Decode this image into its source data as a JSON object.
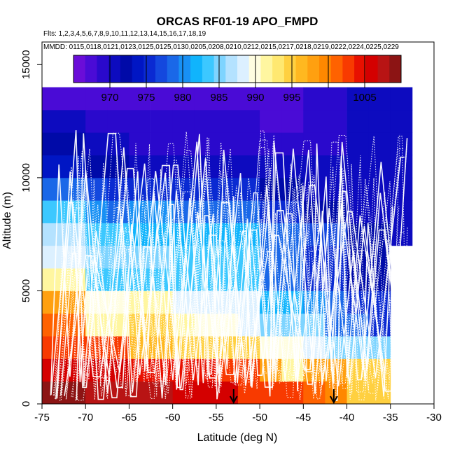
{
  "chart_data": {
    "type": "heatmap",
    "title": "ORCAS RF01-19 APO_FMPD",
    "flights_text": "Flts: 1,2,3,4,5,6,7,8,9,10,11,12,13,14,15,16,17,18,19",
    "dates_text": "MMDD: 0115,0118,0121,0123,0125,0125,0130,0205,0208,0210,0212,0215,0217,0218,0219,0222,0224,0225,0229",
    "xlabel": "Latitude (deg N)",
    "ylabel": "Altitude (m)",
    "xlim": [
      -75,
      -30
    ],
    "ylim": [
      0,
      16000
    ],
    "x_ticks": [
      -75,
      -70,
      -65,
      -60,
      -55,
      -50,
      -45,
      -40,
      -35,
      -30
    ],
    "x_tick_labels": [
      "-75",
      "-70",
      "-65",
      "-60",
      "-55",
      "-50",
      "-45",
      "-40",
      "-35",
      "-30"
    ],
    "y_ticks": [
      0,
      5000,
      10000,
      15000
    ],
    "y_tick_labels": [
      "0",
      "5000",
      "10000",
      "15000"
    ],
    "colorbar": {
      "range": [
        965,
        1010
      ],
      "ticks": [
        970,
        975,
        980,
        985,
        990,
        995,
        1005
      ],
      "tick_labels": [
        "970",
        "975",
        "980",
        "985",
        "990",
        "995",
        "1005"
      ],
      "colors": [
        "#6a0dd8",
        "#4a0bd6",
        "#2a09cc",
        "#0d0bbf",
        "#000aa8",
        "#0016c4",
        "#0a2ad2",
        "#1448de",
        "#1a68e8",
        "#1890f4",
        "#10b4fc",
        "#3cc8ff",
        "#7ed4ff",
        "#b4e2ff",
        "#dcf0ff",
        "#fffde0",
        "#fff6a0",
        "#ffe870",
        "#ffd040",
        "#ffb820",
        "#ffa010",
        "#ff8800",
        "#ff6200",
        "#f83a00",
        "#e81000",
        "#d40000",
        "#b81414",
        "#8c1414"
      ]
    },
    "grid": {
      "lat_bin_width": 2.5,
      "alt_bin_height": 1000,
      "bins": [
        {
          "lat": -75.0,
          "values": [
            1010,
            1006,
            1003,
            1001,
            998,
            991,
            989,
            987,
            983,
            979,
            974,
            972,
            970,
            967
          ]
        },
        {
          "lat": -72.5,
          "values": [
            1010,
            1006,
            1003,
            1001,
            998,
            991,
            989,
            987,
            983,
            979,
            974,
            972,
            970,
            967
          ]
        },
        {
          "lat": -70.0,
          "values": [
            1008,
            1006,
            1003,
            992,
            990,
            983,
            985,
            983,
            980,
            977,
            972,
            970,
            969,
            967
          ]
        },
        {
          "lat": -67.5,
          "values": [
            1007,
            1006,
            1002,
            992,
            990,
            983,
            985,
            983,
            979,
            976,
            972,
            970,
            969,
            967
          ]
        },
        {
          "lat": -65.0,
          "values": [
            1007,
            1005,
            996,
            994,
            992,
            983,
            985,
            982,
            980,
            975,
            971,
            969,
            969,
            967
          ]
        },
        {
          "lat": -62.5,
          "values": [
            1007,
            1005,
            996,
            994,
            992,
            983,
            985,
            982,
            980,
            975,
            971,
            969,
            969,
            967
          ]
        },
        {
          "lat": -60.0,
          "values": [
            1006,
            1004,
            994,
            991,
            989,
            983,
            983,
            982,
            979,
            975,
            971,
            969,
            969,
            967
          ]
        },
        {
          "lat": -57.5,
          "values": [
            1006,
            1004,
            994,
            990,
            988,
            983,
            983,
            982,
            979,
            975,
            971,
            969,
            969,
            967
          ]
        },
        {
          "lat": -55.0,
          "values": [
            1006,
            1003,
            994,
            990,
            989,
            983,
            983,
            982,
            979,
            975,
            971,
            969,
            969,
            967
          ]
        },
        {
          "lat": -52.5,
          "values": [
            1003,
            1003,
            995,
            989,
            988,
            983,
            983,
            982,
            979,
            975,
            971,
            969,
            969,
            968
          ]
        },
        {
          "lat": -50.0,
          "values": [
            1002,
            998,
            990,
            985,
            982,
            979,
            978,
            979,
            976,
            973,
            970,
            969,
            968,
            968
          ]
        },
        {
          "lat": -47.5,
          "values": [
            1002,
            992,
            990,
            985,
            982,
            979,
            978,
            979,
            976,
            973,
            970,
            969,
            968,
            968
          ]
        },
        {
          "lat": -45.0,
          "values": [
            1001,
            998,
            988,
            985,
            981,
            975,
            976,
            977,
            973,
            970,
            970,
            969,
            969,
            969
          ]
        },
        {
          "lat": -42.5,
          "values": [
            999,
            998,
            985,
            979,
            978,
            975,
            976,
            977,
            973,
            970,
            970,
            969,
            969,
            969
          ]
        },
        {
          "lat": -40.0,
          "values": [
            995,
            994,
            985,
            979,
            976,
            973,
            972,
            972,
            971,
            971,
            971,
            971,
            971,
            971
          ]
        },
        {
          "lat": -37.5,
          "values": [
            995,
            994,
            985,
            976,
            976,
            973,
            972,
            972,
            971,
            971,
            970,
            970,
            970,
            970
          ]
        },
        {
          "lat": -35.0,
          "values": [
            null,
            null,
            null,
            null,
            null,
            null,
            null,
            971,
            971,
            971,
            970,
            970,
            970,
            970
          ]
        }
      ]
    },
    "markers": [
      {
        "lat": -53.0,
        "label": "arrow"
      },
      {
        "lat": -41.5,
        "label": "arrow"
      }
    ],
    "flight_tracks": {
      "color": "#ffffff",
      "count": 19,
      "style": "dotted profiles and solid level legs"
    }
  }
}
